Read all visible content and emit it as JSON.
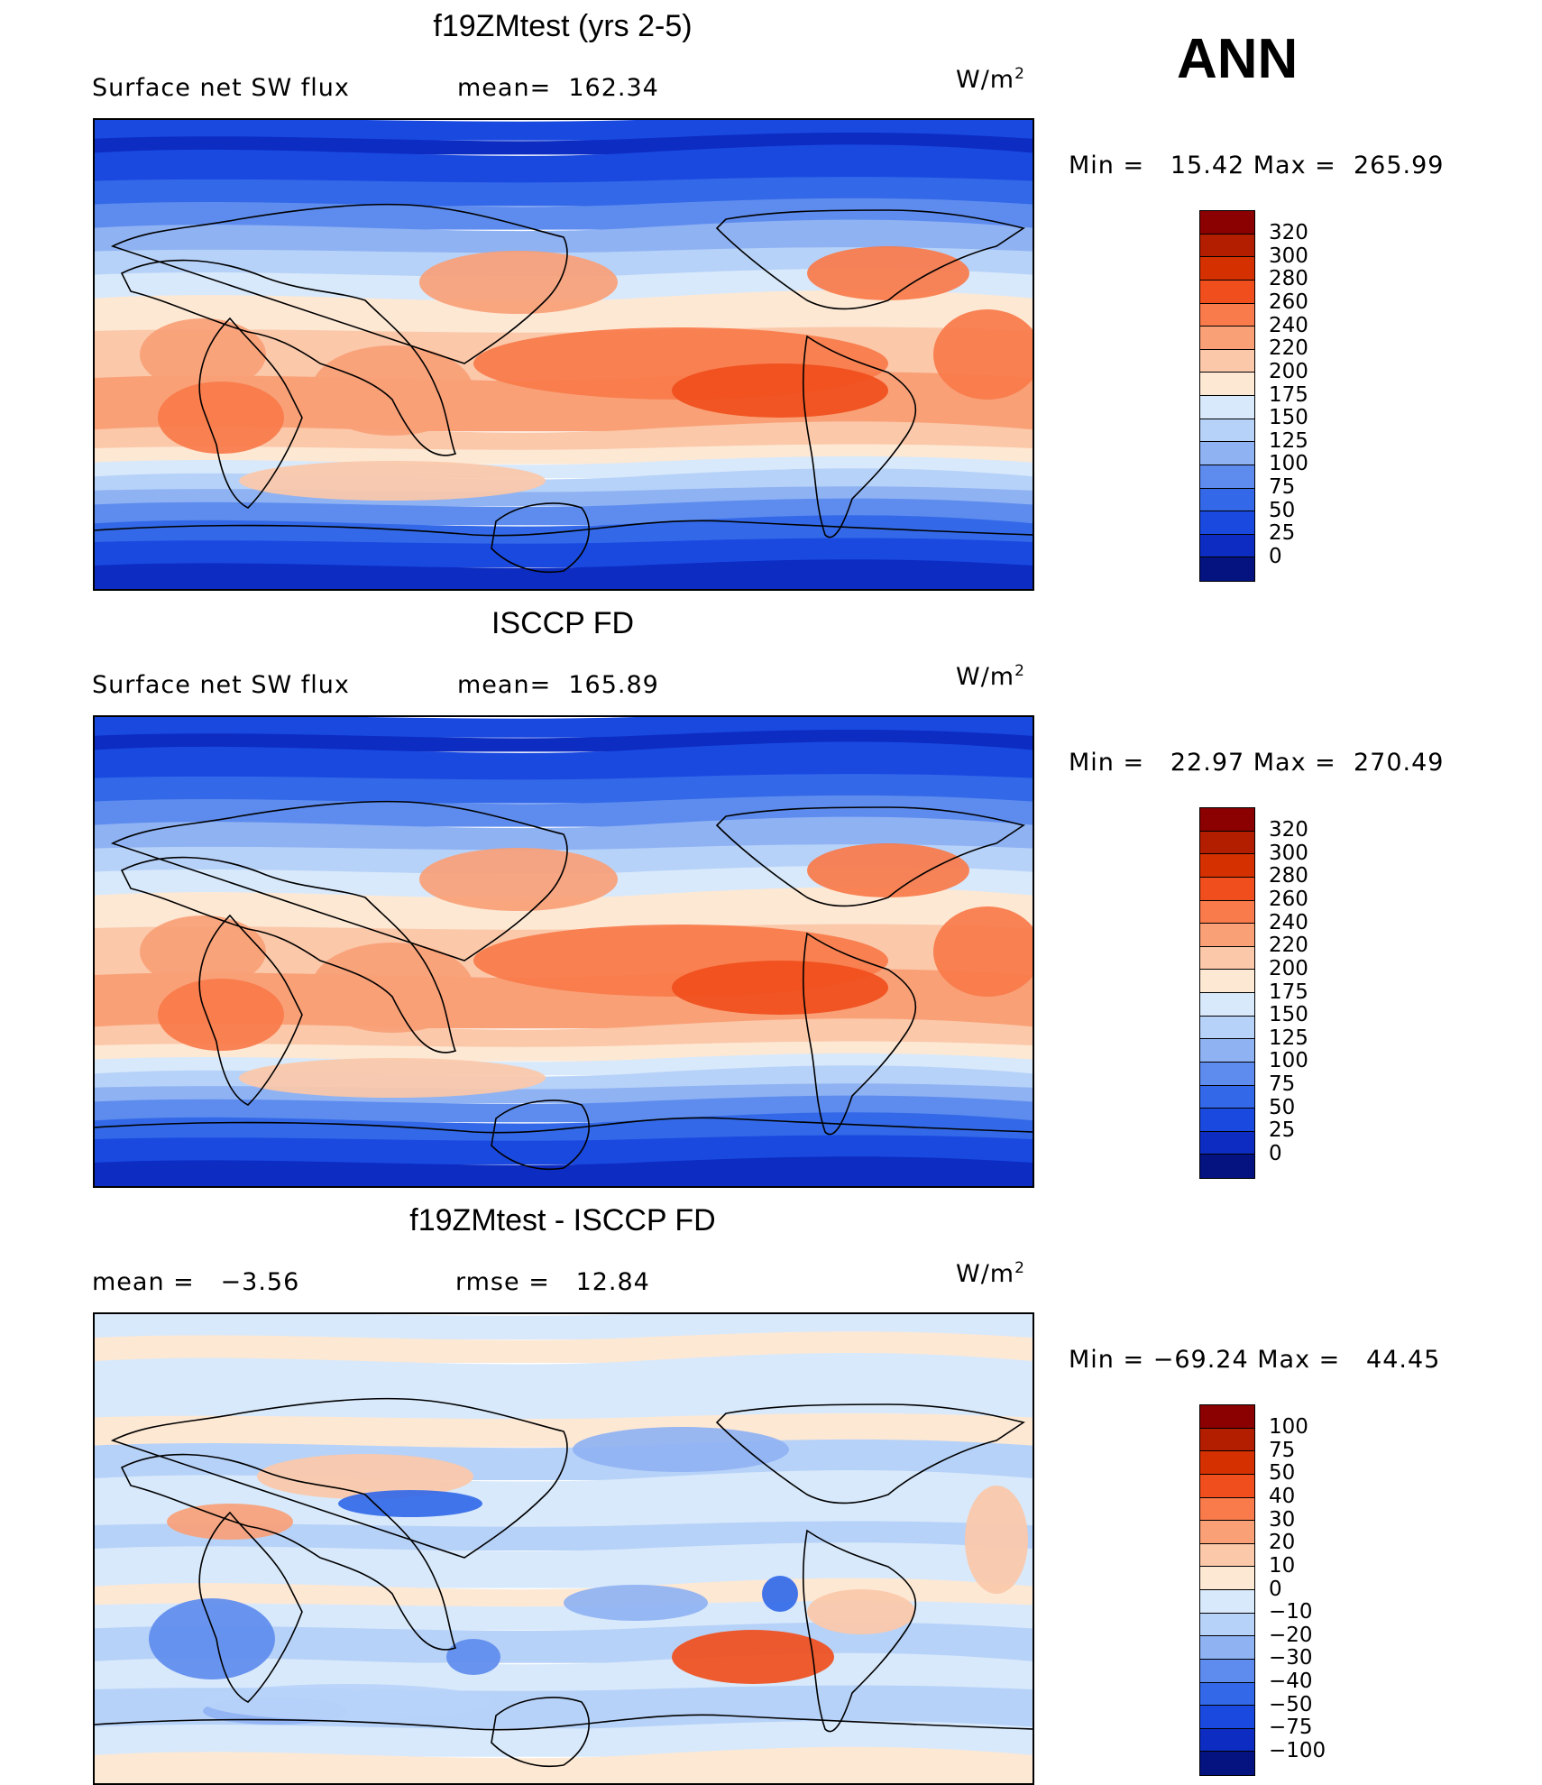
{
  "season": "ANN",
  "units_label": "W/m",
  "units_sup": "2",
  "chart_data": [
    {
      "type": "heatmap",
      "title": "f19ZMtest (yrs 2-5)",
      "variable": "Surface net SW flux",
      "mean_label": "mean=",
      "mean": "162.34",
      "min_label": "Min =",
      "min": "15.42",
      "max_label": "Max =",
      "max": "265.99",
      "levels": [
        "320",
        "300",
        "280",
        "260",
        "240",
        "220",
        "200",
        "175",
        "150",
        "125",
        "100",
        "75",
        "50",
        "25",
        "0"
      ],
      "colors": [
        "#8b0000",
        "#b31e00",
        "#d53100",
        "#f04e1c",
        "#f97a4a",
        "#f9a077",
        "#fbc8a9",
        "#fde8d4",
        "#d8e9fb",
        "#b7d2f8",
        "#8fb2f3",
        "#5e8cee",
        "#3369e8",
        "#1a49e0",
        "#0c2cc2",
        "#041380"
      ]
    },
    {
      "type": "heatmap",
      "title": "ISCCP FD",
      "variable": "Surface net SW flux",
      "mean_label": "mean=",
      "mean": "165.89",
      "min_label": "Min =",
      "min": "22.97",
      "max_label": "Max =",
      "max": "270.49",
      "levels": [
        "320",
        "300",
        "280",
        "260",
        "240",
        "220",
        "200",
        "175",
        "150",
        "125",
        "100",
        "75",
        "50",
        "25",
        "0"
      ],
      "colors": [
        "#8b0000",
        "#b31e00",
        "#d53100",
        "#f04e1c",
        "#f97a4a",
        "#f9a077",
        "#fbc8a9",
        "#fde8d4",
        "#d8e9fb",
        "#b7d2f8",
        "#8fb2f3",
        "#5e8cee",
        "#3369e8",
        "#1a49e0",
        "#0c2cc2",
        "#041380"
      ]
    },
    {
      "type": "heatmap",
      "title": "f19ZMtest - ISCCP FD",
      "mean_label": "mean =",
      "mean": "−3.56",
      "rmse_label": "rmse =",
      "rmse": "12.84",
      "min_label": "Min =",
      "min": "−69.24",
      "max_label": "Max =",
      "max": "44.45",
      "levels": [
        "100",
        "75",
        "50",
        "40",
        "30",
        "20",
        "10",
        "0",
        "−10",
        "−20",
        "−30",
        "−40",
        "−50",
        "−75",
        "−100"
      ],
      "colors": [
        "#8b0000",
        "#b31e00",
        "#d53100",
        "#f04e1c",
        "#f97a4a",
        "#f9a077",
        "#fbc8a9",
        "#fde8d4",
        "#d8e9fb",
        "#b7d2f8",
        "#8fb2f3",
        "#5e8cee",
        "#3369e8",
        "#1a49e0",
        "#0c2cc2",
        "#041380"
      ]
    }
  ]
}
